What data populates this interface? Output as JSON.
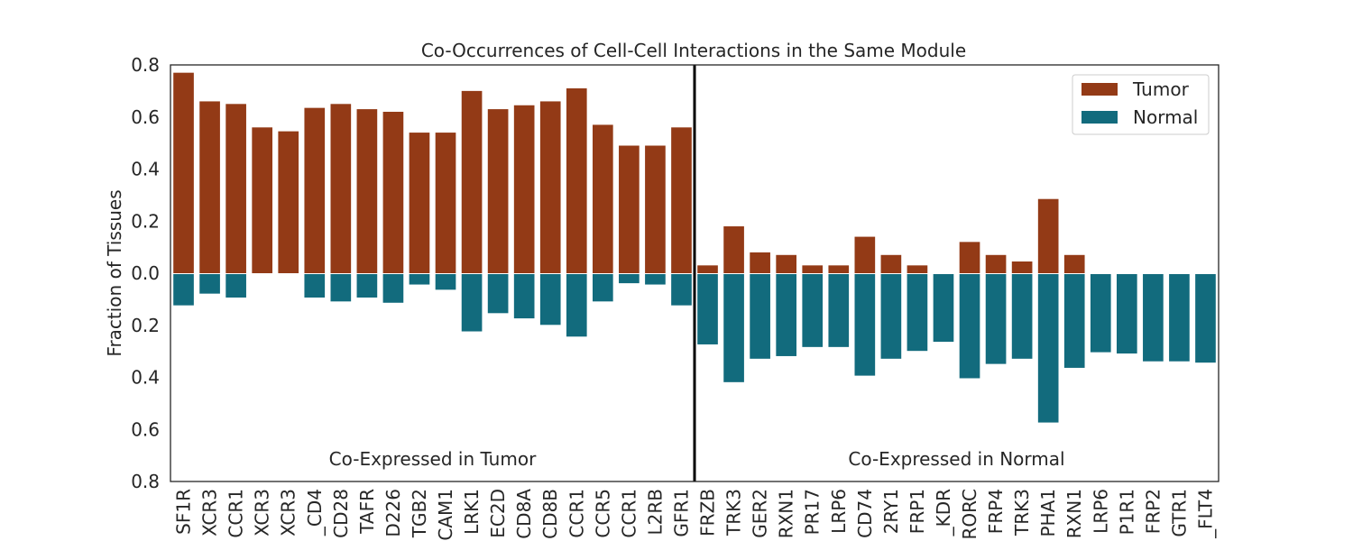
{
  "chart_data": {
    "type": "bar",
    "title": "Co-Occurrences of Cell-Cell Interactions in the Same Module",
    "ylabel": "Fraction of Tissues",
    "xlabel": "",
    "ylim": [
      -0.8,
      0.8
    ],
    "yticks": [
      0.8,
      0.6,
      0.4,
      0.2,
      0.0,
      0.2,
      0.4,
      0.6,
      0.8
    ],
    "categories": [
      "SF1R",
      "XCR3",
      "CCR1",
      "XCR3",
      "XCR3",
      "_CD4",
      "CD28",
      "TAFR",
      "D226",
      "TGB2",
      "CAM1",
      "LRK1",
      "EC2D",
      "CD8A",
      "CD8B",
      "CCR1",
      "CCR5",
      "CCR1",
      "L2RB",
      "GFR1",
      "FRZB",
      "TRK3",
      "GER2",
      "RXN1",
      "PR17",
      "LRP6",
      "CD74",
      "2RY1",
      "FRP1",
      "_KDR",
      "RORC",
      "FRP4",
      "TRK3",
      "PHA1",
      "RXN1",
      "LRP6",
      "P1R1",
      "FRP2",
      "GTR1",
      "_FLT4"
    ],
    "series": [
      {
        "name": "Tumor",
        "values": [
          0.77,
          0.66,
          0.65,
          0.56,
          0.545,
          0.635,
          0.65,
          0.63,
          0.62,
          0.54,
          0.54,
          0.7,
          0.63,
          0.645,
          0.66,
          0.71,
          0.57,
          0.49,
          0.49,
          0.56,
          0.03,
          0.18,
          0.08,
          0.07,
          0.03,
          0.03,
          0.14,
          0.07,
          0.03,
          0.0,
          0.12,
          0.07,
          0.045,
          0.285,
          0.07,
          0.0,
          0.0,
          0.0,
          0.0,
          0.0
        ]
      },
      {
        "name": "Normal",
        "values": [
          0.12,
          0.075,
          0.09,
          0.0,
          0.0,
          0.09,
          0.105,
          0.09,
          0.11,
          0.04,
          0.06,
          0.22,
          0.15,
          0.17,
          0.195,
          0.24,
          0.105,
          0.035,
          0.04,
          0.12,
          0.27,
          0.415,
          0.325,
          0.315,
          0.28,
          0.28,
          0.39,
          0.325,
          0.295,
          0.26,
          0.4,
          0.345,
          0.325,
          0.57,
          0.36,
          0.3,
          0.305,
          0.335,
          0.335,
          0.34
        ]
      }
    ],
    "divider_after_index": 19,
    "annotations": [
      "Co-Expressed in Tumor",
      "Co-Expressed in Normal"
    ],
    "legend_position": "top-right",
    "grid": false,
    "colors": {
      "tumor": "#933a16",
      "normal": "#126b7d",
      "divider": "#000000"
    }
  }
}
